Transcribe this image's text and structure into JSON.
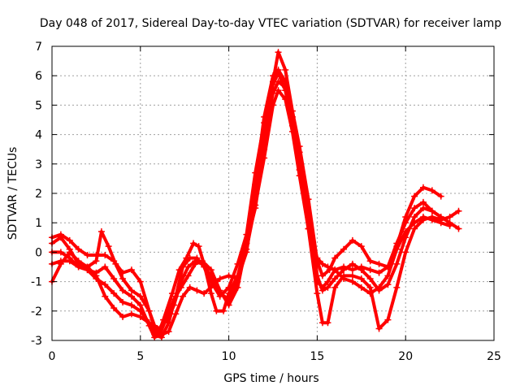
{
  "chart_data": {
    "type": "scatter",
    "title": "Day 048 of 2017, Sidereal Day-to-day VTEC variation (SDTVAR) for receiver lamp",
    "xlabel": "GPS time / hours",
    "ylabel": "SDTVAR / TECUs",
    "xlim": [
      0,
      25
    ],
    "ylim": [
      -3,
      7
    ],
    "xticks": [
      "0",
      "5",
      "10",
      "15",
      "20",
      "25"
    ],
    "yticks": [
      "-3",
      "-2",
      "-1",
      "0",
      "1",
      "2",
      "3",
      "4",
      "5",
      "6",
      "7"
    ],
    "grid": true,
    "marker": "plus",
    "color": "#ff0000",
    "series": [
      {
        "points": [
          [
            0,
            0.5
          ],
          [
            0.5,
            0.6
          ],
          [
            1,
            0.4
          ],
          [
            1.5,
            0.1
          ],
          [
            2,
            -0.1
          ],
          [
            2.5,
            -0.1
          ],
          [
            3,
            -0.1
          ],
          [
            3.5,
            -0.3
          ],
          [
            4,
            -0.7
          ],
          [
            4.5,
            -0.6
          ],
          [
            5,
            -1.0
          ],
          [
            5.5,
            -2.0
          ],
          [
            5.8,
            -2.6
          ],
          [
            6.0,
            -2.8
          ],
          [
            6.3,
            -2.3
          ],
          [
            6.8,
            -1.4
          ],
          [
            7.2,
            -0.6
          ],
          [
            7.6,
            -0.2
          ],
          [
            8.0,
            0.3
          ],
          [
            8.3,
            0.2
          ],
          [
            8.6,
            -0.4
          ],
          [
            9.0,
            -1.4
          ],
          [
            9.3,
            -2.0
          ],
          [
            9.7,
            -2.0
          ],
          [
            10.0,
            -1.4
          ],
          [
            10.5,
            -0.8
          ],
          [
            11,
            0.3
          ],
          [
            11.5,
            1.5
          ],
          [
            12,
            3.5
          ],
          [
            12.5,
            5.8
          ],
          [
            12.8,
            6.8
          ],
          [
            13.2,
            6.2
          ],
          [
            13.6,
            4.8
          ],
          [
            14,
            3.6
          ],
          [
            14.5,
            1.8
          ],
          [
            15,
            -0.3
          ],
          [
            15.3,
            -0.8
          ],
          [
            15.7,
            -0.6
          ],
          [
            16,
            -0.2
          ],
          [
            16.5,
            0.1
          ],
          [
            17,
            0.4
          ],
          [
            17.5,
            0.2
          ],
          [
            18,
            -0.3
          ],
          [
            18.5,
            -0.4
          ],
          [
            19,
            -0.5
          ],
          [
            19.5,
            0.2
          ],
          [
            20,
            1.2
          ],
          [
            20.5,
            1.9
          ],
          [
            21,
            2.2
          ],
          [
            21.5,
            2.1
          ],
          [
            22,
            1.9
          ]
        ]
      },
      {
        "points": [
          [
            0,
            -1.0
          ],
          [
            0.5,
            -0.4
          ],
          [
            1,
            0.0
          ],
          [
            1.5,
            -0.3
          ],
          [
            2,
            -0.5
          ],
          [
            2.5,
            -0.8
          ],
          [
            3,
            -1.5
          ],
          [
            3.5,
            -1.9
          ],
          [
            4,
            -2.2
          ],
          [
            4.5,
            -2.1
          ],
          [
            5,
            -2.2
          ],
          [
            5.5,
            -2.4
          ],
          [
            5.8,
            -2.6
          ],
          [
            6.2,
            -2.8
          ],
          [
            6.6,
            -2.7
          ],
          [
            7.0,
            -2.1
          ],
          [
            7.4,
            -1.5
          ],
          [
            7.8,
            -1.2
          ],
          [
            8.2,
            -1.3
          ],
          [
            8.6,
            -1.4
          ],
          [
            9.0,
            -1.2
          ],
          [
            9.5,
            -0.9
          ],
          [
            10,
            -0.8
          ],
          [
            10.5,
            -0.9
          ],
          [
            11,
            0.0
          ],
          [
            11.5,
            2.0
          ],
          [
            12,
            4.0
          ],
          [
            12.5,
            5.4
          ],
          [
            12.8,
            5.8
          ],
          [
            13.2,
            5.6
          ],
          [
            13.6,
            4.6
          ],
          [
            14,
            3.4
          ],
          [
            14.5,
            1.8
          ],
          [
            15,
            -0.8
          ],
          [
            15.3,
            -1.3
          ],
          [
            15.6,
            -1.2
          ],
          [
            16,
            -0.9
          ],
          [
            16.5,
            -0.6
          ],
          [
            17,
            -0.4
          ],
          [
            17.5,
            -0.6
          ],
          [
            18,
            -0.9
          ],
          [
            18.5,
            -1.3
          ],
          [
            19,
            -1.1
          ],
          [
            19.5,
            -0.4
          ],
          [
            20,
            0.5
          ],
          [
            20.5,
            1.2
          ],
          [
            21,
            1.5
          ],
          [
            21.5,
            1.4
          ],
          [
            22,
            1.2
          ],
          [
            22.5,
            1.0
          ],
          [
            23,
            0.8
          ]
        ]
      },
      {
        "points": [
          [
            0,
            0.0
          ],
          [
            0.5,
            0.0
          ],
          [
            1,
            -0.2
          ],
          [
            1.5,
            -0.5
          ],
          [
            2,
            -0.6
          ],
          [
            2.5,
            -0.7
          ],
          [
            3,
            -0.5
          ],
          [
            3.5,
            -0.9
          ],
          [
            4,
            -1.3
          ],
          [
            4.5,
            -1.5
          ],
          [
            5,
            -1.8
          ],
          [
            5.5,
            -2.5
          ],
          [
            5.8,
            -2.9
          ],
          [
            6.1,
            -2.8
          ],
          [
            6.5,
            -2.2
          ],
          [
            6.9,
            -1.6
          ],
          [
            7.3,
            -1.2
          ],
          [
            7.7,
            -0.8
          ],
          [
            8.1,
            -0.4
          ],
          [
            8.5,
            -0.3
          ],
          [
            9.0,
            -0.6
          ],
          [
            9.5,
            -1.3
          ],
          [
            10,
            -1.8
          ],
          [
            10.5,
            -1.2
          ],
          [
            11,
            0.3
          ],
          [
            11.5,
            2.3
          ],
          [
            12,
            4.6
          ],
          [
            12.5,
            6.0
          ],
          [
            12.8,
            6.2
          ],
          [
            13.2,
            5.8
          ],
          [
            13.6,
            4.5
          ],
          [
            14,
            3.2
          ],
          [
            14.5,
            1.2
          ],
          [
            15,
            -1.0
          ],
          [
            15.3,
            -1.2
          ],
          [
            15.6,
            -1.0
          ],
          [
            16,
            -0.6
          ],
          [
            16.5,
            -0.5
          ],
          [
            17,
            -0.6
          ],
          [
            17.5,
            -0.5
          ],
          [
            18,
            -0.6
          ],
          [
            18.5,
            -0.7
          ],
          [
            19,
            -0.5
          ],
          [
            19.5,
            0.3
          ],
          [
            20,
            1.0
          ],
          [
            20.5,
            1.5
          ],
          [
            21,
            1.7
          ],
          [
            21.5,
            1.4
          ],
          [
            22,
            1.2
          ]
        ]
      },
      {
        "points": [
          [
            0,
            -0.4
          ],
          [
            0.5,
            -0.3
          ],
          [
            1,
            -0.3
          ],
          [
            1.5,
            -0.5
          ],
          [
            2,
            -0.6
          ],
          [
            2.5,
            -0.9
          ],
          [
            3,
            -1.1
          ],
          [
            3.5,
            -1.4
          ],
          [
            4,
            -1.7
          ],
          [
            4.5,
            -1.8
          ],
          [
            5,
            -2.0
          ],
          [
            5.5,
            -2.4
          ],
          [
            5.8,
            -2.8
          ],
          [
            6.2,
            -2.9
          ],
          [
            6.6,
            -2.4
          ],
          [
            7.0,
            -1.5
          ],
          [
            7.4,
            -0.5
          ],
          [
            7.8,
            -0.2
          ],
          [
            8.2,
            -0.2
          ],
          [
            8.6,
            -0.5
          ],
          [
            9.0,
            -1.0
          ],
          [
            9.5,
            -1.5
          ],
          [
            10,
            -1.2
          ],
          [
            10.5,
            -0.4
          ],
          [
            11,
            0.6
          ],
          [
            11.5,
            2.7
          ],
          [
            12,
            4.4
          ],
          [
            12.5,
            5.7
          ],
          [
            12.8,
            6.1
          ],
          [
            13.2,
            5.5
          ],
          [
            13.6,
            4.3
          ],
          [
            14,
            2.8
          ],
          [
            14.5,
            0.8
          ],
          [
            15,
            -1.4
          ],
          [
            15.3,
            -2.4
          ],
          [
            15.6,
            -2.4
          ],
          [
            16,
            -1.2
          ],
          [
            16.5,
            -0.8
          ],
          [
            17,
            -0.8
          ],
          [
            17.5,
            -0.9
          ],
          [
            18,
            -1.2
          ],
          [
            18.5,
            -2.6
          ],
          [
            19,
            -2.3
          ],
          [
            19.5,
            -1.2
          ],
          [
            20,
            0.0
          ],
          [
            20.5,
            0.8
          ],
          [
            21,
            1.1
          ],
          [
            21.5,
            1.2
          ],
          [
            22,
            1.1
          ],
          [
            22.5,
            1.2
          ],
          [
            23,
            1.4
          ]
        ]
      },
      {
        "points": [
          [
            0,
            0.3
          ],
          [
            0.5,
            0.5
          ],
          [
            1,
            0.1
          ],
          [
            1.5,
            -0.4
          ],
          [
            2,
            -0.5
          ],
          [
            2.5,
            -0.3
          ],
          [
            2.8,
            0.7
          ],
          [
            3.2,
            0.2
          ],
          [
            3.6,
            -0.4
          ],
          [
            4,
            -0.9
          ],
          [
            4.5,
            -1.3
          ],
          [
            5,
            -1.5
          ],
          [
            5.5,
            -2.0
          ],
          [
            5.8,
            -2.5
          ],
          [
            6.1,
            -2.6
          ],
          [
            6.5,
            -2.3
          ],
          [
            6.9,
            -1.8
          ],
          [
            7.3,
            -1.0
          ],
          [
            7.7,
            -0.5
          ],
          [
            8.1,
            -0.3
          ],
          [
            8.5,
            -0.4
          ],
          [
            9.0,
            -0.8
          ],
          [
            9.5,
            -1.4
          ],
          [
            10,
            -1.6
          ],
          [
            10.5,
            -1.0
          ],
          [
            11,
            0.1
          ],
          [
            11.5,
            1.6
          ],
          [
            12,
            3.2
          ],
          [
            12.5,
            5.0
          ],
          [
            12.8,
            5.5
          ],
          [
            13.2,
            5.2
          ],
          [
            13.6,
            4.1
          ],
          [
            14,
            2.6
          ],
          [
            14.5,
            0.8
          ],
          [
            15,
            -0.2
          ],
          [
            15.3,
            -0.4
          ],
          [
            15.6,
            -0.5
          ],
          [
            16,
            -0.6
          ],
          [
            16.5,
            -0.9
          ],
          [
            17,
            -1.0
          ],
          [
            17.5,
            -1.2
          ],
          [
            18,
            -1.4
          ],
          [
            18.5,
            -1.2
          ],
          [
            19,
            -0.8
          ],
          [
            19.5,
            0.1
          ],
          [
            20,
            0.7
          ],
          [
            20.5,
            1.0
          ],
          [
            21,
            1.2
          ],
          [
            21.5,
            1.1
          ],
          [
            22,
            1.0
          ],
          [
            22.5,
            0.9
          ]
        ]
      }
    ]
  }
}
